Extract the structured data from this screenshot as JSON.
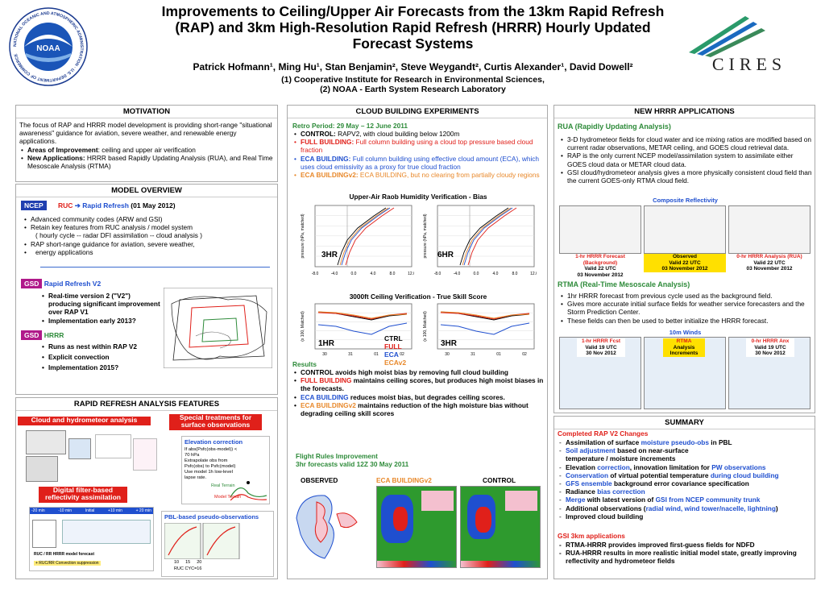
{
  "header": {
    "title": "Improvements to Ceiling/Upper Air Forecasts from the 13km Rapid Refresh (RAP) and 3km High-Resolution Rapid Refresh (HRRR) Hourly Updated Forecast Systems",
    "authors": "Patrick Hofmann¹, Ming Hu¹, Stan Benjamin², Steve Weygandt², Curtis Alexander¹, David Dowell²",
    "affil1": "(1) Cooperative Institute for Research in Environmental Sciences,",
    "affil2": "(2) NOAA - Earth System Research Laboratory",
    "noaa_logo_text": "NOAA",
    "noaa_ring_text": "NATIONAL OCEANIC AND ATMOSPHERIC ADMINISTRATION · U.S. DEPARTMENT OF COMMERCE",
    "cires_logo_text": "CIRES"
  },
  "motivation": {
    "title": "MOTIVATION",
    "intro": "The focus of RAP and HRRR model development is providing short-range \"situational awareness\" guidance for aviation, severe weather, and renewable energy applications.",
    "b1_label": "Areas of Improvement",
    "b1_text": ": ceiling and upper air verification",
    "b2_label": "New Applications:",
    "b2_text": "  HRRR based Rapidly Updating Analysis (RUA), and Real Time Mesoscale Analysis (RTMA)"
  },
  "model_overview": {
    "title": "MODEL OVERVIEW",
    "ncep": "NCEP",
    "ruc": "RUC",
    "arrow": "➔",
    "rr": "Rapid Refresh",
    "date": "(01 May 2012)",
    "items": [
      "Advanced community codes  (ARW and GSI)",
      "Retain key features from RUC analysis / model system",
      "  ( hourly cycle  --  radar DFI assimilation  --  cloud analysis )",
      "RAP short-range guidance for aviation, severe weather,",
      "  energy applications"
    ],
    "gsd": "GSD",
    "rrv2": "Rapid Refresh V2",
    "rrv2_items": [
      "Real-time version 2 (\"V2\") producing significant improvement over RAP V1",
      "Implementation early 2013?"
    ],
    "hrrr": "HRRR",
    "hrrr_items": [
      "Runs as nest within RAP V2",
      "Explicit convection",
      "Implementation 2015?"
    ]
  },
  "rr_features": {
    "title": "RAPID REFRESH ANALYSIS FEATURES",
    "bar1": "Cloud and hydrometeor analysis",
    "bar2": "Special treatments for surface observations",
    "bar3": "Digital filter-based reflectivity assimilation",
    "elev_title": "Elevation correction",
    "elev_lines": [
      "If abs(Psfc(obs-model)) < 70 hPa",
      "Extrapolate obs from Psfc(obs) to Psfc(model)",
      "Use model 1h low-level lapse rate."
    ],
    "elev_terrain1": "Real Terrain",
    "elev_terrain2": "Model Terrain",
    "pbl_title": "PBL-based pseudo-observations",
    "pbl_ruc": "RUC",
    "pbl_cyc": "CYC=16",
    "pbl_ticks": [
      "10",
      "15",
      "20"
    ],
    "dfi_labels": [
      "-20 min",
      "-10 min",
      "Initial",
      "+10 min",
      "+ 20 min"
    ],
    "dfi_bottom": "RUC / RR HRRR model forecast",
    "dfi_note": "+ RUC/RR Convection suppression"
  },
  "cloud_exp": {
    "title": "CLOUD BUILDING EXPERIMENTS",
    "period": "Retro Period: 29 May – 12 June 2011",
    "items": [
      {
        "label": "CONTROL:",
        "text": " RAPV2, with cloud building below 1200m",
        "cls": ""
      },
      {
        "label": "FULL BUILDING:",
        "text": " Full column building using a cloud top pressure based cloud fraction",
        "cls": "red"
      },
      {
        "label": "ECA BUILDING:",
        "text": " Full column building using effective cloud amount (ECA), which uses cloud emissivity as a proxy for true cloud fraction",
        "cls": "blue"
      },
      {
        "label": "ECA BUILDINGv2:",
        "text": " ECA BUILDING, but no clearing from partially cloudy regions",
        "cls": "orange"
      }
    ],
    "raob_title": "Upper-Air Raob Humidity Verification - Bias",
    "raob_3hr": "3HR",
    "raob_6hr": "6HR",
    "raob_ylabel": "pressure (hPa, matched)",
    "raob_ticks": [
      "-8.0",
      "-4.0",
      "0.0",
      "4.0",
      "8.0",
      "12.0"
    ],
    "ceil_title": "3000ft Ceiling Verification  -  True Skill Score",
    "ceil_1hr": "1HR",
    "ceil_3hr": "3HR",
    "ceil_ylabel": "(x 100, Matched)",
    "ceil_xticks": [
      "30",
      "31",
      "01",
      "02"
    ],
    "legend": [
      "CTRL",
      "FULL",
      "ECA",
      "ECAv2"
    ],
    "results_title": "Results",
    "results": [
      {
        "label": "CONTROL",
        "text": " avoids high moist bias by removing full cloud building",
        "cls": ""
      },
      {
        "label": "FULL BUILDING",
        "text": " maintains ceiling scores, but produces high moist biases in the forecasts.",
        "cls": "red"
      },
      {
        "label": "ECA BUILDING",
        "text": " reduces moist bias, but degrades ceiling scores.",
        "cls": "blue"
      },
      {
        "label": "ECA BUILDINGv2",
        "text": " maintains reduction of the high moisture bias without degrading ceiling skill scores",
        "cls": "orange"
      }
    ],
    "flight_title": "Flight Rules Improvement",
    "flight_sub": "3hr forecasts valid 12Z 30 May 2011",
    "obs": "OBSERVED",
    "ecav2": "ECA BUILDINGv2",
    "control": "CONTROL"
  },
  "hrrr_apps": {
    "title": "NEW HRRR APPLICATIONS",
    "rua_title": "RUA (Rapidly Updating Analysis)",
    "rua_items": [
      "3-D hydrometeor fields for cloud water and ice mixing ratios are modified based on current radar observations, METAR ceiling, and GOES cloud retrieval data.",
      "RAP is the only current NCEP model/assimilation system to assimilate either GOES cloud data or METAR cloud data.",
      "GSI cloud/hydrometeor analysis gives a more physically consistent cloud field than the current GOES-only RTMA cloud field."
    ],
    "comp_title": "Composite Reflectivity",
    "comp_boxes": [
      {
        "l1": "1-hr HRRR Forecast",
        "l2": "(Background)",
        "l3": "Valid 22 UTC",
        "l4": "03 November 2012"
      },
      {
        "l1": "Observed",
        "l2": "Valid 22 UTC",
        "l3": "03 November 2012"
      },
      {
        "l1": "0-hr HRRR Analysis (RUA)",
        "l2": "Valid 22 UTC",
        "l3": "03 November 2012"
      }
    ],
    "rtma_title": "RTMA (Real-Time Mesoscale Analysis)",
    "rtma_items": [
      "1hr HRRR forecast from previous cycle used as the background field.",
      "Gives more accurate initial surface fields for weather service forecasters and the Storm Prediction Center.",
      "These fields can then be used to better initialize the HRRR forecast."
    ],
    "wind_title": "10m Winds",
    "wind_boxes": [
      {
        "l1": "1-hr HRRR Fcst",
        "l2": "Valid 19 UTC",
        "l3": "30 Nov 2012"
      },
      {
        "l1": "RTMA",
        "l2": "Analysis",
        "l3": "Increments"
      },
      {
        "l1": "0-hr HRRR Anx",
        "l2": "Valid 19 UTC",
        "l3": "30 Nov 2012"
      }
    ]
  },
  "summary": {
    "title": "SUMMARY",
    "v2_title": "Completed RAP V2 Changes",
    "v2_items": [
      [
        {
          "t": "Assimilation of surface ",
          "c": "b"
        },
        {
          "t": "moisture pseudo-obs",
          "c": "b blue"
        },
        {
          "t": " in PBL",
          "c": "b"
        }
      ],
      [
        {
          "t": "Soil adjustment",
          "c": "b blue"
        },
        {
          "t": " based on near-surface",
          "c": "b"
        }
      ],
      [
        {
          "t": "    temperature / moisture increments",
          "c": "b"
        }
      ],
      [
        {
          "t": "Elevation ",
          "c": "b"
        },
        {
          "t": "correction",
          "c": "b blue"
        },
        {
          "t": ", innovation limitation for ",
          "c": "b"
        },
        {
          "t": "PW observations",
          "c": "b blue"
        }
      ],
      [
        {
          "t": "Conservation",
          "c": "b blue"
        },
        {
          "t": " of virtual potential temperature ",
          "c": "b"
        },
        {
          "t": "during cloud building",
          "c": "b blue"
        }
      ],
      [
        {
          "t": "GFS ensemble",
          "c": "b blue"
        },
        {
          "t": " background error covariance specification",
          "c": "b"
        }
      ],
      [
        {
          "t": "Radiance ",
          "c": "b"
        },
        {
          "t": "bias correction",
          "c": "b blue"
        }
      ],
      [
        {
          "t": "Merge",
          "c": "b blue"
        },
        {
          "t": " with latest version of ",
          "c": "b"
        },
        {
          "t": "GSI from NCEP community trunk",
          "c": "b blue"
        }
      ],
      [
        {
          "t": "Additional observations (",
          "c": "b"
        },
        {
          "t": "radial wind, wind tower/nacelle, lightning",
          "c": "b blue"
        },
        {
          "t": ")",
          "c": "b"
        }
      ],
      [
        {
          "t": "Improved cloud building",
          "c": "b"
        }
      ]
    ],
    "gsi_title": "GSI 3km applications",
    "gsi_items": [
      "RTMA-HRRR provides improved first-guess fields for NDFD",
      "RUA-HRRR results in more realistic initial model state, greatly improving reflectivity and hydrometeor fields"
    ]
  },
  "colors": {
    "ctrl": "#000000",
    "full": "#e0201a",
    "eca": "#1f4fcf",
    "ecav2": "#e8882a",
    "ncep": "#1f3fb0",
    "gsd": "#b01a8a"
  }
}
